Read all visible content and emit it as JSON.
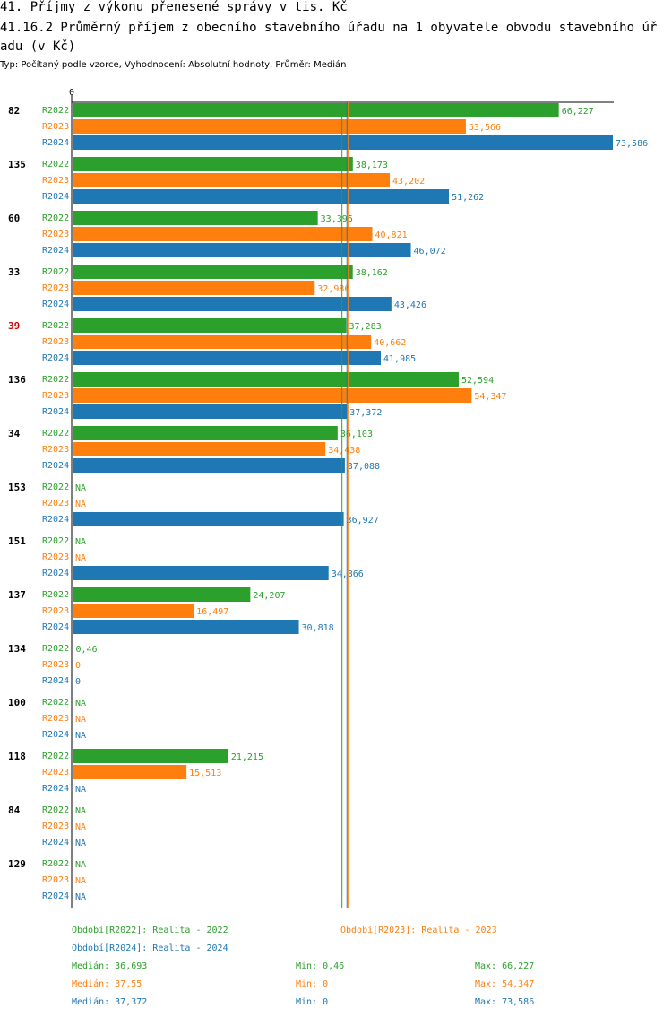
{
  "header": {
    "title": "41. Příjmy z výkonu přenesené správy v tis. Kč",
    "subtitle": "41.16.2 Průměrný příjem z obecního stavebního úřadu na 1 obyvatele obvodu stavebního úřadu (v Kč)",
    "meta": "Typ: Počítaný podle vzorce, Vyhodnocení: Absolutní hodnoty, Průměr: Medián"
  },
  "chart_data": {
    "type": "bar",
    "orientation": "horizontal",
    "axis_zero_label": "0",
    "xlim": [
      0,
      73586
    ],
    "series_colors": {
      "R2022": "#2ca02c",
      "R2023": "#ff7f0e",
      "R2024": "#1f77b4"
    },
    "series": [
      "R2022",
      "R2023",
      "R2024"
    ],
    "groups": [
      {
        "label": "82",
        "highlight": false,
        "bars": [
          {
            "series": "R2022",
            "value": 66227,
            "label": "66,227"
          },
          {
            "series": "R2023",
            "value": 53566,
            "label": "53,566"
          },
          {
            "series": "R2024",
            "value": 73586,
            "label": "73,586"
          }
        ]
      },
      {
        "label": "135",
        "highlight": false,
        "bars": [
          {
            "series": "R2022",
            "value": 38173,
            "label": "38,173"
          },
          {
            "series": "R2023",
            "value": 43202,
            "label": "43,202"
          },
          {
            "series": "R2024",
            "value": 51262,
            "label": "51,262"
          }
        ]
      },
      {
        "label": "60",
        "highlight": false,
        "bars": [
          {
            "series": "R2022",
            "value": 33396,
            "label": "33,396"
          },
          {
            "series": "R2023",
            "value": 40821,
            "label": "40,821"
          },
          {
            "series": "R2024",
            "value": 46072,
            "label": "46,072"
          }
        ]
      },
      {
        "label": "33",
        "highlight": false,
        "bars": [
          {
            "series": "R2022",
            "value": 38162,
            "label": "38,162"
          },
          {
            "series": "R2023",
            "value": 32986,
            "label": "32,986"
          },
          {
            "series": "R2024",
            "value": 43426,
            "label": "43,426"
          }
        ]
      },
      {
        "label": "39",
        "highlight": true,
        "bars": [
          {
            "series": "R2022",
            "value": 37283,
            "label": "37,283"
          },
          {
            "series": "R2023",
            "value": 40662,
            "label": "40,662"
          },
          {
            "series": "R2024",
            "value": 41985,
            "label": "41,985"
          }
        ]
      },
      {
        "label": "136",
        "highlight": false,
        "bars": [
          {
            "series": "R2022",
            "value": 52594,
            "label": "52,594"
          },
          {
            "series": "R2023",
            "value": 54347,
            "label": "54,347"
          },
          {
            "series": "R2024",
            "value": 37372,
            "label": "37,372"
          }
        ]
      },
      {
        "label": "34",
        "highlight": false,
        "bars": [
          {
            "series": "R2022",
            "value": 36103,
            "label": "36,103"
          },
          {
            "series": "R2023",
            "value": 34438,
            "label": "34,438"
          },
          {
            "series": "R2024",
            "value": 37088,
            "label": "37,088"
          }
        ]
      },
      {
        "label": "153",
        "highlight": false,
        "bars": [
          {
            "series": "R2022",
            "value": null,
            "label": "NA"
          },
          {
            "series": "R2023",
            "value": null,
            "label": "NA"
          },
          {
            "series": "R2024",
            "value": 36927,
            "label": "36,927"
          }
        ]
      },
      {
        "label": "151",
        "highlight": false,
        "bars": [
          {
            "series": "R2022",
            "value": null,
            "label": "NA"
          },
          {
            "series": "R2023",
            "value": null,
            "label": "NA"
          },
          {
            "series": "R2024",
            "value": 34866,
            "label": "34,866"
          }
        ]
      },
      {
        "label": "137",
        "highlight": false,
        "bars": [
          {
            "series": "R2022",
            "value": 24207,
            "label": "24,207"
          },
          {
            "series": "R2023",
            "value": 16497,
            "label": "16,497"
          },
          {
            "series": "R2024",
            "value": 30818,
            "label": "30,818"
          }
        ]
      },
      {
        "label": "134",
        "highlight": false,
        "bars": [
          {
            "series": "R2022",
            "value": 0.46,
            "label": "0,46"
          },
          {
            "series": "R2023",
            "value": 0,
            "label": "0"
          },
          {
            "series": "R2024",
            "value": 0,
            "label": "0"
          }
        ]
      },
      {
        "label": "100",
        "highlight": false,
        "bars": [
          {
            "series": "R2022",
            "value": null,
            "label": "NA"
          },
          {
            "series": "R2023",
            "value": null,
            "label": "NA"
          },
          {
            "series": "R2024",
            "value": null,
            "label": "NA"
          }
        ]
      },
      {
        "label": "118",
        "highlight": false,
        "bars": [
          {
            "series": "R2022",
            "value": 21215,
            "label": "21,215"
          },
          {
            "series": "R2023",
            "value": 15513,
            "label": "15,513"
          },
          {
            "series": "R2024",
            "value": null,
            "label": "NA"
          }
        ]
      },
      {
        "label": "84",
        "highlight": false,
        "bars": [
          {
            "series": "R2022",
            "value": null,
            "label": "NA"
          },
          {
            "series": "R2023",
            "value": null,
            "label": "NA"
          },
          {
            "series": "R2024",
            "value": null,
            "label": "NA"
          }
        ]
      },
      {
        "label": "129",
        "highlight": false,
        "bars": [
          {
            "series": "R2022",
            "value": null,
            "label": "NA"
          },
          {
            "series": "R2023",
            "value": null,
            "label": "NA"
          },
          {
            "series": "R2024",
            "value": null,
            "label": "NA"
          }
        ]
      }
    ],
    "median_lines": [
      {
        "series": "R2022",
        "value": 36693
      },
      {
        "series": "R2023",
        "value": 37550
      },
      {
        "series": "R2024",
        "value": 37372
      }
    ],
    "legend": [
      {
        "series": "R2022",
        "text": "Období[R2022]: Realita - 2022"
      },
      {
        "series": "R2023",
        "text": "Období[R2023]: Realita - 2023"
      },
      {
        "series": "R2024",
        "text": "Období[R2024]: Realita - 2024"
      }
    ],
    "stats": [
      {
        "series": "R2022",
        "median": "Medián: 36,693",
        "min": "Min: 0,46",
        "max": "Max: 66,227"
      },
      {
        "series": "R2023",
        "median": "Medián: 37,55",
        "min": "Min: 0",
        "max": "Max: 54,347"
      },
      {
        "series": "R2024",
        "median": "Medián: 37,372",
        "min": "Min: 0",
        "max": "Max: 73,586"
      }
    ]
  }
}
